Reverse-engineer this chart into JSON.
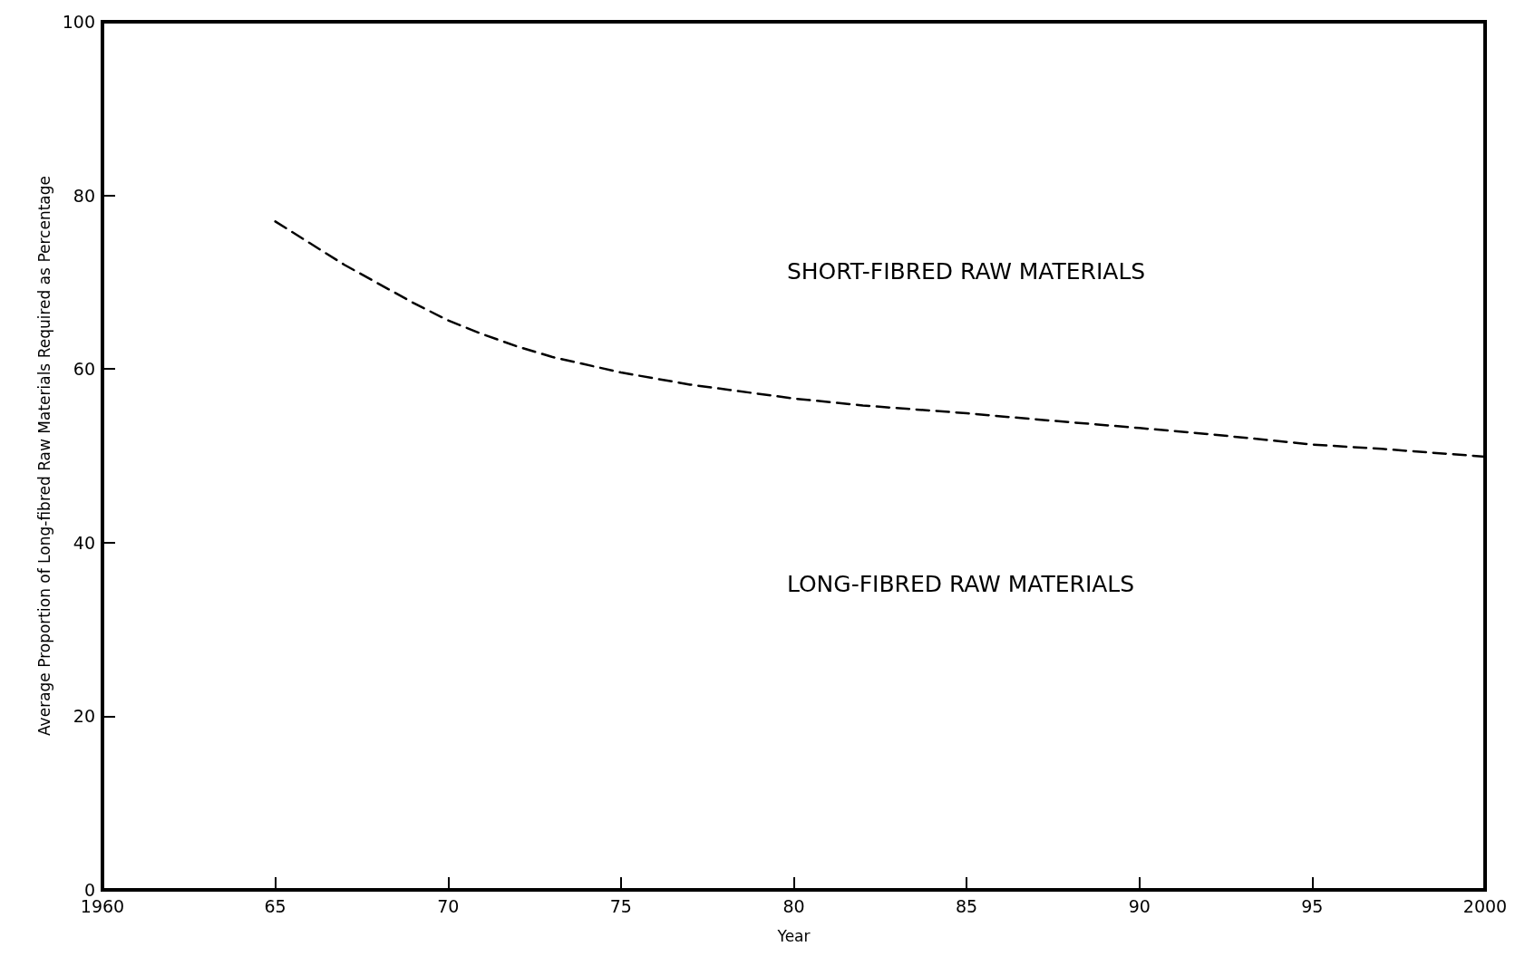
{
  "chart_data": {
    "type": "line",
    "xlabel": "Year",
    "ylabel": "Average Proportion of Long-fibred Raw Materials Required as Percentage",
    "x": [
      1965,
      1966,
      1967,
      1968,
      1969,
      1970,
      1971,
      1972,
      1973,
      1975,
      1977,
      1980,
      1982,
      1985,
      1987,
      1990,
      1992,
      1995,
      1997,
      2000
    ],
    "series": [
      {
        "color": "#000000",
        "values": [
          77,
          74.5,
          72,
          69.8,
          67.6,
          65.6,
          64,
          62.6,
          61.4,
          59.6,
          58.2,
          56.6,
          55.8,
          54.9,
          54.2,
          53.2,
          52.5,
          51.3,
          50.8,
          49.9
        ]
      }
    ],
    "xlim": [
      1960,
      2000
    ],
    "xticks": [
      {
        "value": 1960,
        "label": "1960"
      },
      {
        "value": 1965,
        "label": "65"
      },
      {
        "value": 1970,
        "label": "70"
      },
      {
        "value": 1975,
        "label": "75"
      },
      {
        "value": 1980,
        "label": "80"
      },
      {
        "value": 1985,
        "label": "85"
      },
      {
        "value": 1990,
        "label": "90"
      },
      {
        "value": 1995,
        "label": "95"
      },
      {
        "value": 2000,
        "label": "2000"
      }
    ],
    "ylim": [
      0,
      100
    ],
    "yticks": [
      0,
      20,
      40,
      60,
      80,
      100
    ],
    "annotations": [
      "SHORT-FIBRED RAW MATERIALS",
      "LONG-FIBRED RAW MATERIALS"
    ],
    "grid": false,
    "marker": "none",
    "line_style": "dashed"
  }
}
